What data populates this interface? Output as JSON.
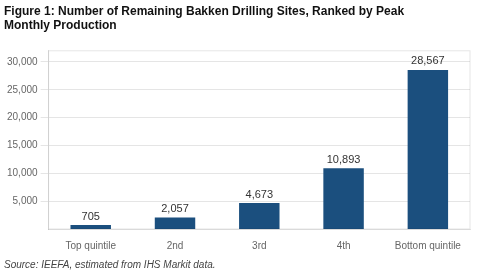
{
  "chart_data": {
    "type": "bar",
    "title": [
      "Figure 1: Number of Remaining Bakken Drilling Sites, Ranked by Peak",
      "Monthly Production"
    ],
    "categories": [
      "Top quintile",
      "2nd",
      "3rd",
      "4th",
      "Bottom quintile"
    ],
    "values": [
      705,
      2057,
      4673,
      10893,
      28567
    ],
    "value_labels": [
      "705",
      "2,057",
      "4,673",
      "10,893",
      "28,567"
    ],
    "data_labels": true,
    "color": "#1b4f7e",
    "ylim": [
      0,
      32000
    ],
    "yticks": [
      {
        "value": 5000,
        "label": "5,000"
      },
      {
        "value": 10000,
        "label": "10,000"
      },
      {
        "value": 15000,
        "label": "15,000"
      },
      {
        "value": 20000,
        "label": "20,000"
      },
      {
        "value": 25000,
        "label": "25,000"
      },
      {
        "value": 30000,
        "label": "30,000"
      }
    ],
    "grid": true,
    "annotations": [
      "Source: IEEFA, estimated from IHS Markit data."
    ]
  }
}
